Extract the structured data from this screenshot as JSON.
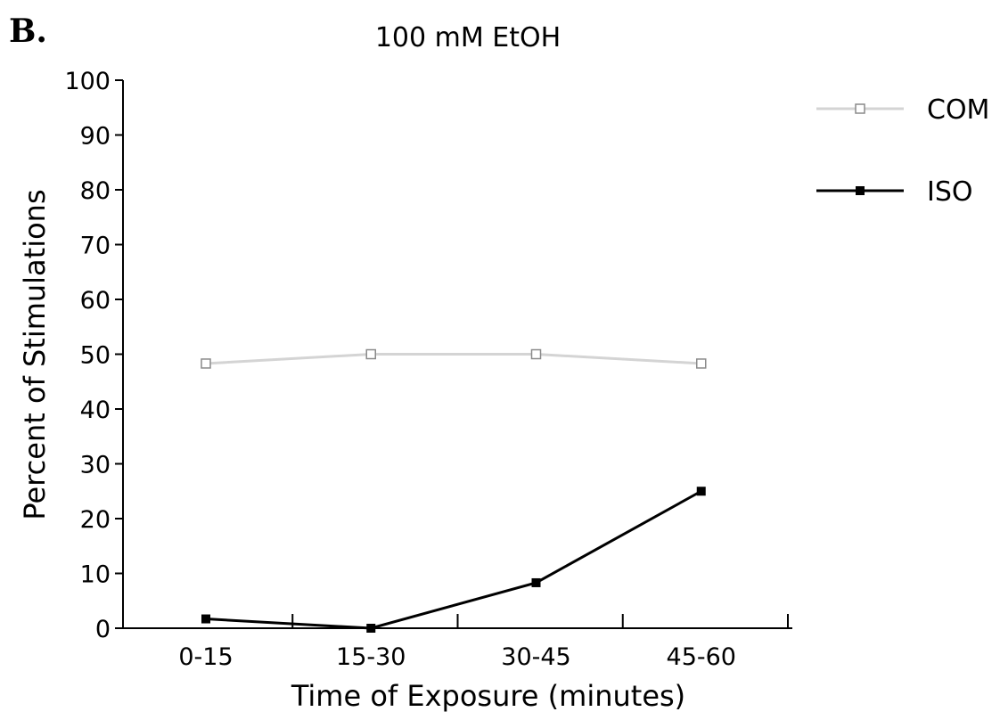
{
  "panel_label": "B.",
  "chart_data": {
    "type": "line",
    "title": "100 mM EtOH",
    "xlabel": "Time of Exposure (minutes)",
    "ylabel": "Percent of Stimulations",
    "categories": [
      "0-15",
      "15-30",
      "30-45",
      "45-60"
    ],
    "ylim": [
      0,
      100
    ],
    "yticks": [
      0,
      10,
      20,
      30,
      40,
      50,
      60,
      70,
      80,
      90,
      100
    ],
    "grid": false,
    "legend_position": "top-right",
    "series": [
      {
        "name": "COM",
        "values": [
          48.3,
          50,
          50,
          48.3
        ],
        "color": "#d4d4d4",
        "marker": "open-square",
        "marker_color": "#8a8a8a"
      },
      {
        "name": "ISO",
        "values": [
          1.7,
          0,
          8.3,
          25
        ],
        "color": "#000000",
        "marker": "filled-square",
        "marker_color": "#000000"
      }
    ]
  }
}
